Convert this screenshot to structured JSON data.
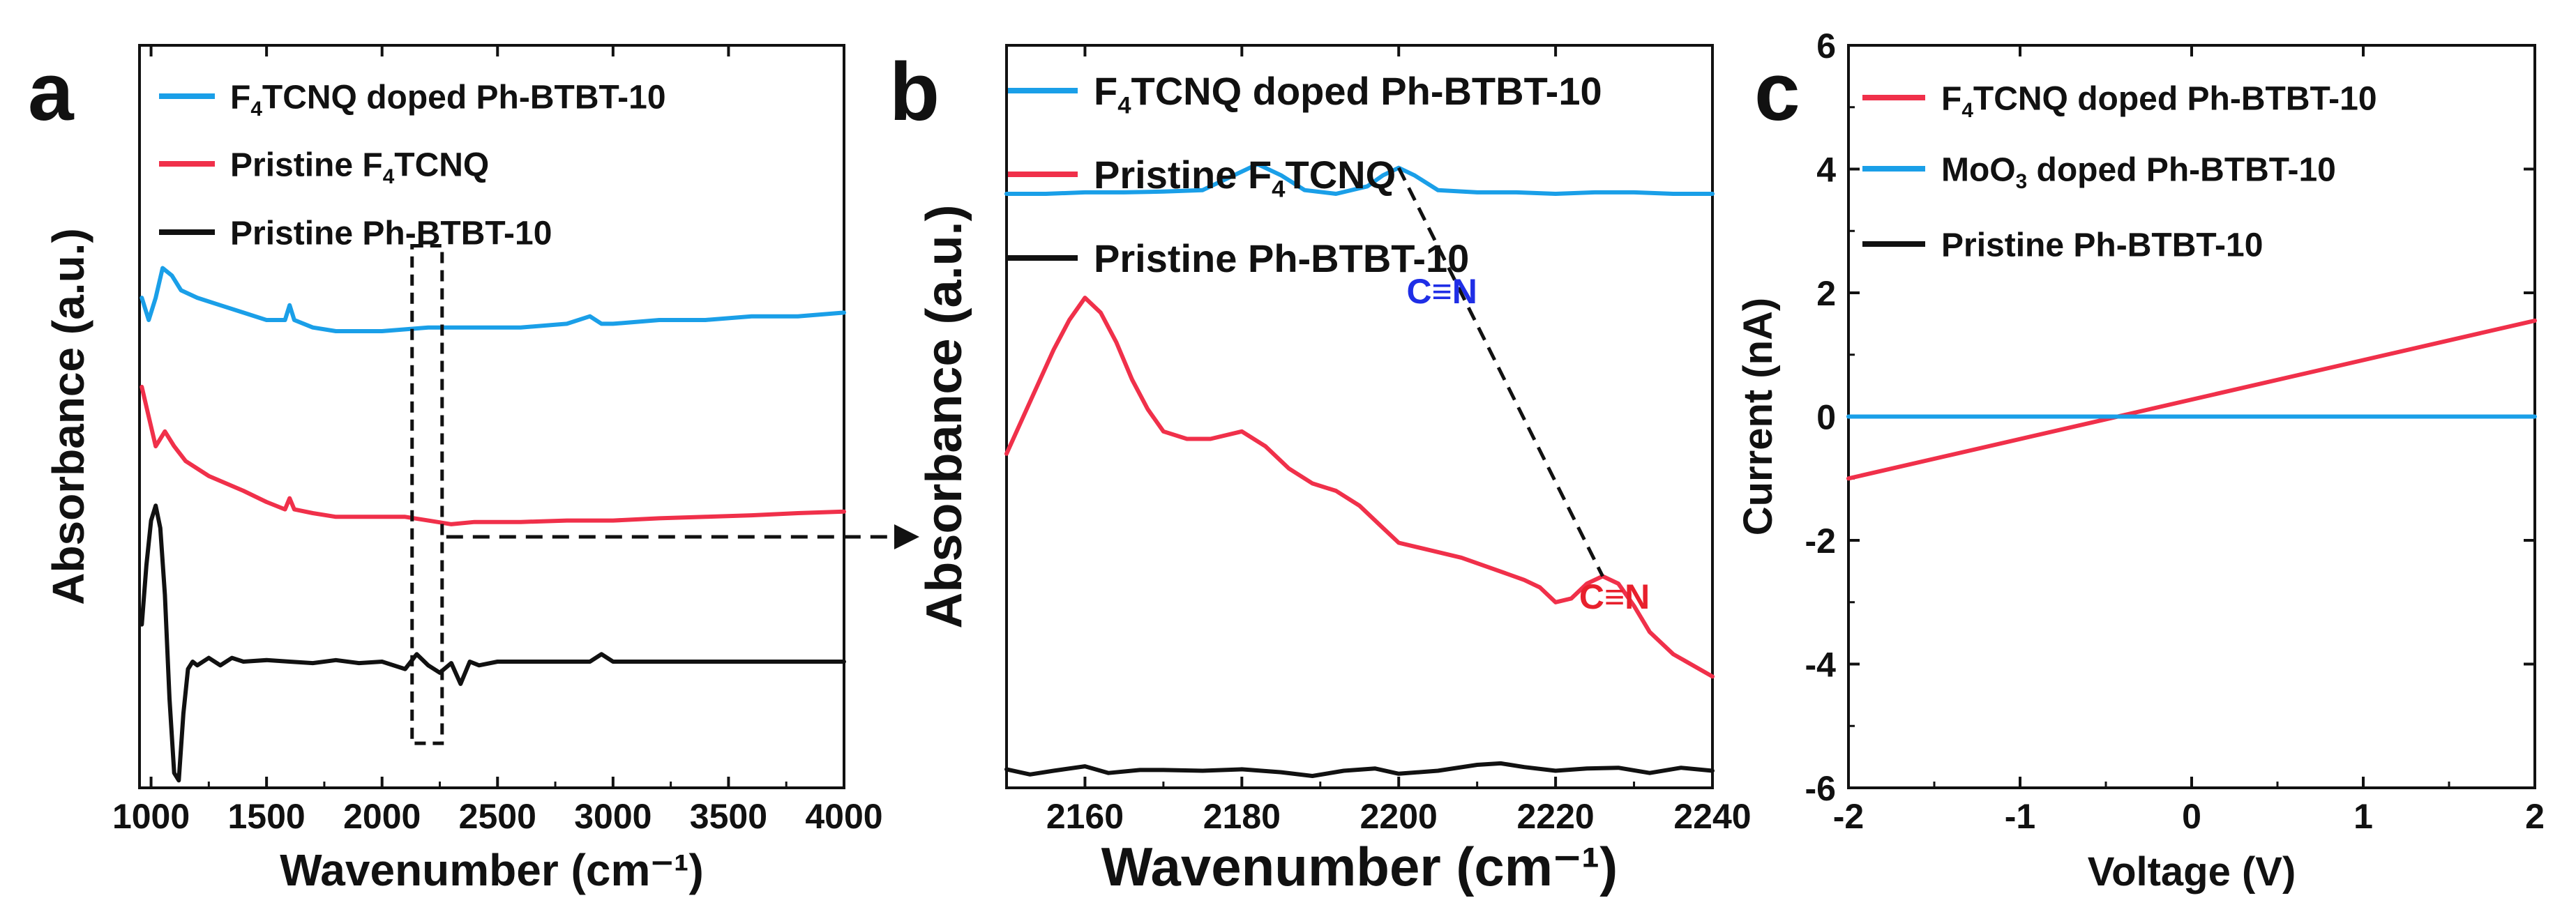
{
  "colors": {
    "blue": "#1a9fe8",
    "red": "#f0304a",
    "black": "#111111",
    "annot_blue": "#1f2ee6",
    "annot_red": "#e8202c"
  },
  "chart_data": [
    {
      "panel": "a",
      "type": "line",
      "xlabel": "Wavenumber (cm⁻¹)",
      "ylabel": "Absorbance (a.u.)",
      "xlim": [
        950,
        4000
      ],
      "ylim": [
        0,
        100
      ],
      "xticks": [
        "1000",
        "1500",
        "2000",
        "2500",
        "3000",
        "3500",
        "4000"
      ],
      "xtick_values": [
        1000,
        1500,
        2000,
        2500,
        3000,
        3500,
        4000
      ],
      "series": [
        {
          "name": "F₄TCNQ doped Ph-BTBT-10",
          "legend_main": "F",
          "legend_sub": "4",
          "legend_rest": "TCNQ doped Ph-BTBT-10",
          "color": "blue",
          "x": [
            960,
            990,
            1020,
            1050,
            1090,
            1130,
            1200,
            1300,
            1400,
            1500,
            1580,
            1600,
            1620,
            1700,
            1800,
            2000,
            2200,
            2400,
            2600,
            2800,
            2900,
            2950,
            3000,
            3200,
            3400,
            3600,
            3800,
            4000
          ],
          "y": [
            66,
            63,
            66,
            70,
            69,
            67,
            66,
            65,
            64,
            63,
            63,
            65,
            63,
            62,
            61.5,
            61.5,
            62,
            62,
            62,
            62.5,
            63.5,
            62.5,
            62.5,
            63,
            63,
            63.5,
            63.5,
            64
          ]
        },
        {
          "name": "Pristine F₄TCNQ",
          "legend_main": "Pristine F",
          "legend_sub": "4",
          "legend_rest": "TCNQ",
          "color": "red",
          "x": [
            960,
            990,
            1020,
            1060,
            1100,
            1150,
            1250,
            1400,
            1500,
            1580,
            1600,
            1620,
            1700,
            1800,
            1900,
            2000,
            2100,
            2200,
            2300,
            2400,
            2600,
            2800,
            3000,
            3200,
            3400,
            3600,
            3800,
            4000
          ],
          "y": [
            54,
            50,
            46,
            48,
            46,
            44,
            42,
            40,
            38.5,
            37.5,
            39,
            37.5,
            37,
            36.5,
            36.5,
            36.5,
            36.5,
            36,
            35.5,
            35.8,
            35.8,
            36,
            36,
            36.3,
            36.5,
            36.7,
            37,
            37.2
          ]
        },
        {
          "name": "Pristine Ph-BTBT-10",
          "legend_main": "Pristine Ph-BTBT-10",
          "legend_sub": "",
          "legend_rest": "",
          "color": "black",
          "x": [
            960,
            980,
            1000,
            1020,
            1040,
            1060,
            1080,
            1100,
            1120,
            1140,
            1160,
            1180,
            1200,
            1250,
            1300,
            1350,
            1400,
            1500,
            1600,
            1700,
            1800,
            1900,
            2000,
            2100,
            2150,
            2200,
            2250,
            2300,
            2340,
            2380,
            2420,
            2500,
            2700,
            2900,
            2950,
            3000,
            3200,
            3400,
            3600,
            3800,
            4000
          ],
          "y": [
            22,
            30,
            36,
            38,
            35,
            26,
            12,
            2,
            1,
            10,
            16,
            17,
            16.5,
            17.5,
            16.5,
            17.5,
            17,
            17.2,
            17,
            16.8,
            17.2,
            16.8,
            17,
            16,
            18,
            16.5,
            15.5,
            16.8,
            14,
            17,
            16.5,
            17,
            17,
            17,
            18,
            17,
            17,
            17,
            17,
            17,
            17
          ]
        }
      ]
    },
    {
      "panel": "b",
      "type": "line",
      "xlabel": "Wavenumber (cm⁻¹)",
      "ylabel": "Absorbance (a.u.)",
      "xlim": [
        2150,
        2240
      ],
      "ylim": [
        0,
        100
      ],
      "xticks": [
        "2160",
        "2180",
        "2200",
        "2220",
        "2240"
      ],
      "xtick_values": [
        2160,
        2180,
        2200,
        2220,
        2240
      ],
      "series": [
        {
          "name": "F₄TCNQ doped Ph-BTBT-10",
          "legend_main": "F",
          "legend_sub": "4",
          "legend_rest": "TCNQ doped Ph-BTBT-10",
          "color": "blue",
          "x": [
            2150,
            2155,
            2160,
            2165,
            2170,
            2175,
            2178,
            2182,
            2185,
            2188,
            2192,
            2196,
            2198,
            2200,
            2202,
            2205,
            2210,
            2215,
            2220,
            2225,
            2230,
            2235,
            2240
          ],
          "y": [
            80,
            80,
            80.2,
            80.2,
            80.3,
            80.5,
            82,
            84,
            82.5,
            80.5,
            80,
            81,
            82.5,
            83.5,
            82.5,
            80.5,
            80.2,
            80.2,
            80,
            80.2,
            80.2,
            80,
            80
          ]
        },
        {
          "name": "Pristine F₄TCNQ",
          "legend_main": "Pristine F",
          "legend_sub": "4",
          "legend_rest": "TCNQ",
          "color": "red",
          "x": [
            2150,
            2153,
            2156,
            2158,
            2160,
            2162,
            2164,
            2166,
            2168,
            2170,
            2173,
            2176,
            2180,
            2183,
            2186,
            2189,
            2192,
            2195,
            2198,
            2200,
            2204,
            2208,
            2212,
            2216,
            2218,
            2220,
            2222,
            2224,
            2226,
            2228,
            2230,
            2232,
            2235,
            2240
          ],
          "y": [
            45,
            52,
            59,
            63,
            66,
            64,
            60,
            55,
            51,
            48,
            47,
            47,
            48,
            46,
            43,
            41,
            40,
            38,
            35,
            33,
            32,
            31,
            29.5,
            28,
            27,
            25,
            25.5,
            27.5,
            28.5,
            27.5,
            24.5,
            21,
            18,
            15
          ]
        },
        {
          "name": "Pristine Ph-BTBT-10",
          "legend_main": "Pristine Ph-BTBT-10",
          "legend_sub": "",
          "legend_rest": "",
          "color": "black",
          "x": [
            2150,
            2153,
            2156,
            2160,
            2163,
            2167,
            2170,
            2175,
            2180,
            2185,
            2189,
            2193,
            2197,
            2200,
            2205,
            2210,
            2213,
            2216,
            2220,
            2224,
            2228,
            2232,
            2236,
            2240
          ],
          "y": [
            2.5,
            1.8,
            2.3,
            2.9,
            2.0,
            2.4,
            2.4,
            2.3,
            2.5,
            2.1,
            1.6,
            2.3,
            2.6,
            1.9,
            2.3,
            3.1,
            3.3,
            2.8,
            2.3,
            2.6,
            2.7,
            2.0,
            2.7,
            2.3
          ]
        }
      ],
      "annotations": [
        {
          "text": "C≡N",
          "color": "annot_blue",
          "x": 2201,
          "y": 83.5,
          "anchor_x": 2200,
          "anchor_y": 83.5
        },
        {
          "text": "C≡N",
          "color": "annot_red",
          "x": 2222,
          "y": 32,
          "anchor_x": 2226,
          "anchor_y": 28.5
        }
      ]
    },
    {
      "panel": "c",
      "type": "line",
      "xlabel": "Voltage (V)",
      "ylabel": "Current (nA)",
      "xlim": [
        -2,
        2
      ],
      "ylim": [
        -6,
        6
      ],
      "xticks": [
        "-2",
        "-1",
        "0",
        "1",
        "2"
      ],
      "xtick_values": [
        -2,
        -1,
        0,
        1,
        2
      ],
      "yticks": [
        "-6",
        "-4",
        "-2",
        "0",
        "2",
        "4",
        "6"
      ],
      "ytick_values": [
        -6,
        -4,
        -2,
        0,
        2,
        4,
        6
      ],
      "series": [
        {
          "name": "F₄TCNQ doped Ph-BTBT-10",
          "legend_main": "F",
          "legend_sub": "4",
          "legend_rest": "TCNQ doped Ph-BTBT-10",
          "color": "red",
          "x": [
            -2,
            2
          ],
          "y": [
            -1.0,
            1.55
          ]
        },
        {
          "name": "MoO₃ doped Ph-BTBT-10",
          "legend_main": "MoO",
          "legend_sub": "3",
          "legend_rest": " doped Ph-BTBT-10",
          "color": "blue",
          "x": [
            -2,
            2
          ],
          "y": [
            0,
            0
          ]
        },
        {
          "name": "Pristine Ph-BTBT-10",
          "legend_main": "Pristine Ph-BTBT-10",
          "legend_sub": "",
          "legend_rest": "",
          "color": "black",
          "x": [
            -2,
            2
          ],
          "y": [
            0,
            0
          ]
        }
      ]
    }
  ]
}
